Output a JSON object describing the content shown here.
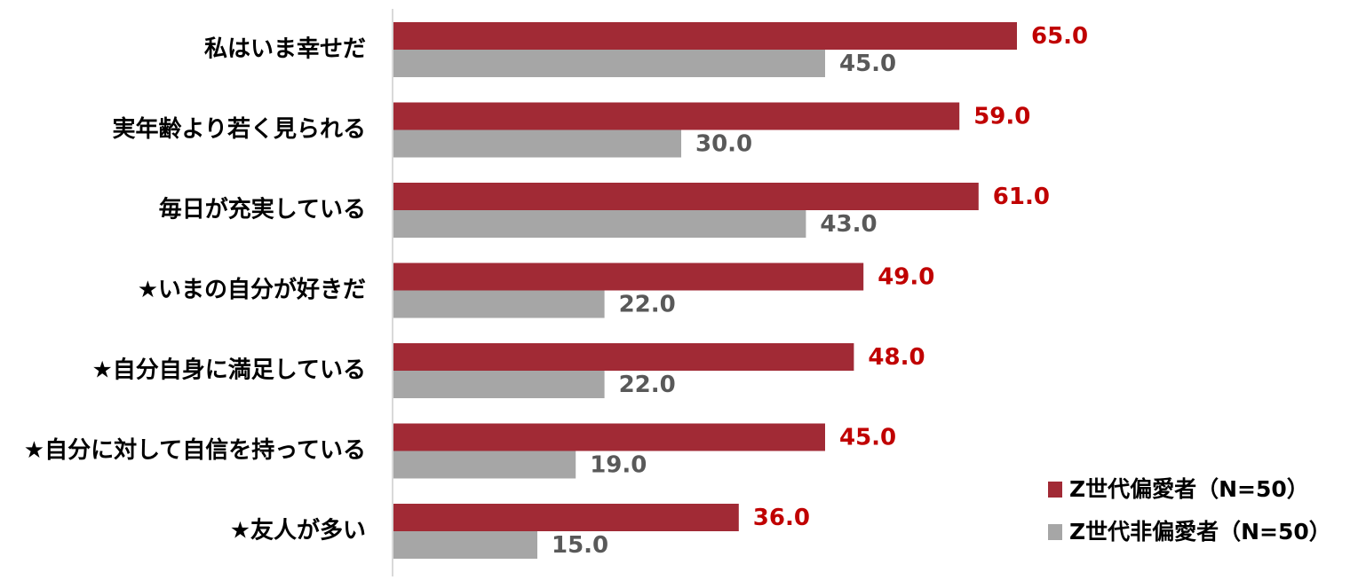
{
  "chart_data": {
    "type": "bar",
    "orientation": "horizontal",
    "categories": [
      "私はいま幸せだ",
      "実年齢より若く見られる",
      "毎日が充実している",
      "★いまの自分が好きだ",
      "★自分自身に満足している",
      "★自分に対して自信を持っている",
      "★友人が多い"
    ],
    "series": [
      {
        "name": "Z世代偏愛者（N=50）",
        "values": [
          65.0,
          59.0,
          61.0,
          49.0,
          48.0,
          45.0,
          36.0
        ],
        "color": "#A12A35",
        "label_color": "#C00000"
      },
      {
        "name": "Z世代非偏愛者（N=50）",
        "values": [
          45.0,
          30.0,
          43.0,
          22.0,
          22.0,
          19.0,
          15.0
        ],
        "color": "#A6A6A6",
        "label_color": "#595959"
      }
    ],
    "xlim": [
      0,
      100
    ],
    "grid": false,
    "legend_position": "bottom-right",
    "title": "",
    "xlabel": "",
    "ylabel": ""
  }
}
